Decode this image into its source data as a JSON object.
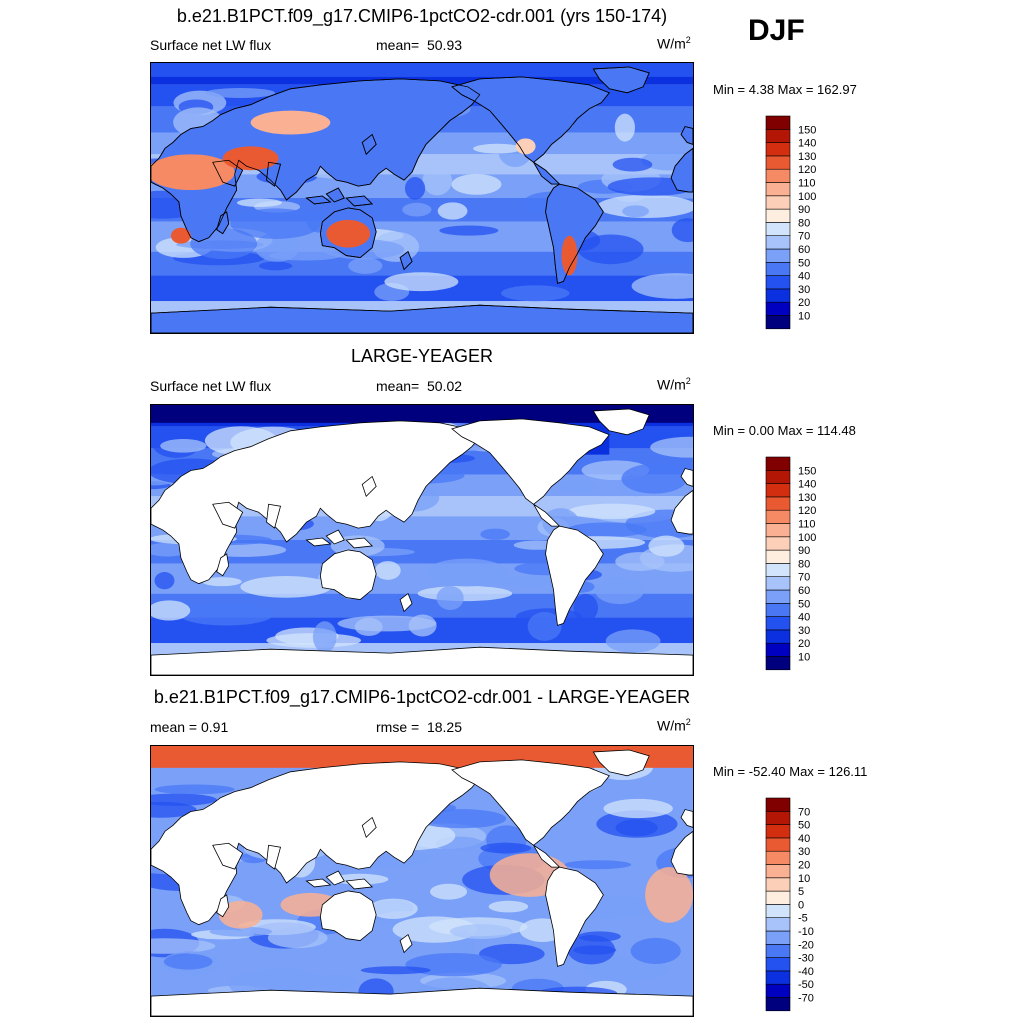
{
  "season": "DJF",
  "panels": [
    {
      "title": "b.e21.B1PCT.f09_g17.CMIP6-1pctCO2-cdr.001 (yrs 150-174)",
      "left": "Surface net LW flux",
      "middle_label": "mean=",
      "middle_value": "50.93",
      "units_base": "W/m",
      "units_exp": "2",
      "minmax": "Min =   4.38 Max = 162.97",
      "field": "model",
      "colorbar": {
        "colors": [
          "#00007f",
          "#0000c0",
          "#0a30e0",
          "#2452f0",
          "#4a78f5",
          "#7aa0f8",
          "#a7c3fa",
          "#d2e4fc",
          "#fdeee0",
          "#fcd0b8",
          "#fab092",
          "#f58a64",
          "#ea5a32",
          "#d42e10",
          "#b41605",
          "#800000"
        ],
        "labels": [
          "10",
          "20",
          "30",
          "40",
          "50",
          "60",
          "70",
          "80",
          "90",
          "100",
          "110",
          "120",
          "130",
          "140",
          "150"
        ]
      }
    },
    {
      "title": "LARGE-YEAGER",
      "left": "Surface net LW flux",
      "middle_label": "mean=",
      "middle_value": "50.02",
      "units_base": "W/m",
      "units_exp": "2",
      "minmax": "Min =   0.00 Max = 114.48",
      "field": "obs",
      "colorbar": {
        "colors": [
          "#00007f",
          "#0000c0",
          "#0a30e0",
          "#2452f0",
          "#4a78f5",
          "#7aa0f8",
          "#a7c3fa",
          "#d2e4fc",
          "#fdeee0",
          "#fcd0b8",
          "#fab092",
          "#f58a64",
          "#ea5a32",
          "#d42e10",
          "#b41605",
          "#800000"
        ],
        "labels": [
          "10",
          "20",
          "30",
          "40",
          "50",
          "60",
          "70",
          "80",
          "90",
          "100",
          "110",
          "120",
          "130",
          "140",
          "150"
        ]
      }
    },
    {
      "title": "b.e21.B1PCT.f09_g17.CMIP6-1pctCO2-cdr.001 - LARGE-YEAGER",
      "left": "mean =   0.91",
      "middle_label": "rmse =",
      "middle_value": "18.25",
      "units_base": "W/m",
      "units_exp": "2",
      "minmax": "Min = -52.40 Max = 126.11",
      "field": "diff",
      "colorbar": {
        "colors": [
          "#00007f",
          "#0000c0",
          "#0a30e0",
          "#2452f0",
          "#4a78f5",
          "#7aa0f8",
          "#a7c3fa",
          "#d2e4fc",
          "#fdeee0",
          "#fcd0b8",
          "#fab092",
          "#f58a64",
          "#ea5a32",
          "#d42e10",
          "#b41605",
          "#800000"
        ],
        "labels": [
          "-70",
          "-50",
          "-40",
          "-30",
          "-20",
          "-10",
          "-5",
          "0",
          "5",
          "10",
          "20",
          "30",
          "40",
          "50",
          "70"
        ]
      }
    }
  ]
}
